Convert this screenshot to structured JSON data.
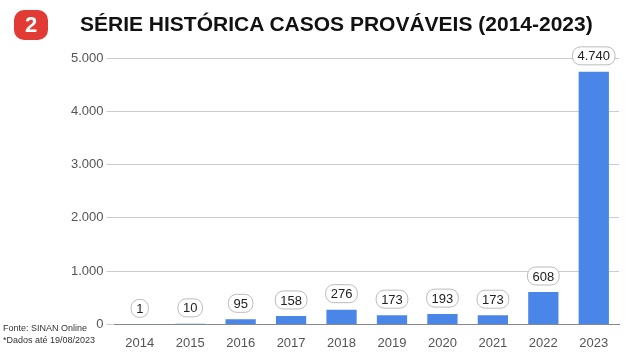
{
  "badge": "2",
  "chart_data": {
    "type": "bar",
    "title": "SÉRIE HISTÓRICA CASOS PROVÁVEIS (2014-2023)",
    "categories": [
      "2014",
      "2015",
      "2016",
      "2017",
      "2018",
      "2019",
      "2020",
      "2021",
      "2022",
      "2023"
    ],
    "values": [
      1,
      10,
      95,
      158,
      276,
      173,
      193,
      173,
      608,
      4740
    ],
    "value_labels": [
      "1",
      "10",
      "95",
      "158",
      "276",
      "173",
      "193",
      "173",
      "608",
      "4.740"
    ],
    "color": "#4a86e8",
    "ylim": [
      0,
      5000
    ],
    "yticks": [
      0,
      {
        "value": 1000,
        "label": "1.000"
      },
      {
        "value": 2000,
        "label": "2.000"
      },
      {
        "value": 3000,
        "label": "3.000"
      },
      {
        "value": 4000,
        "label": "4.000"
      },
      {
        "value": 5000,
        "label": "5.000"
      }
    ],
    "grid": true,
    "data_labels": true,
    "annotations": [
      "Fonte: SINAN Online",
      "*Dados até 19/08/2023"
    ]
  }
}
